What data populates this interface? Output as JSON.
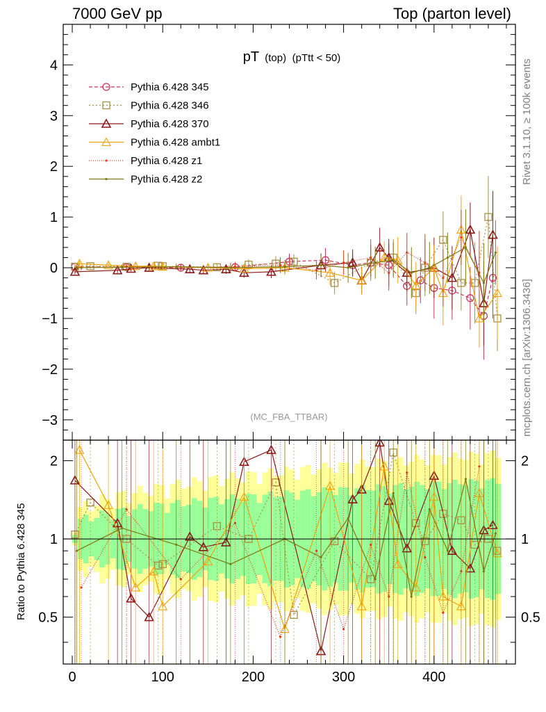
{
  "header": {
    "left": "7000 GeV pp",
    "right": "Top (parton level)"
  },
  "side_labels": {
    "rivet": "Rivet 3.1.10, ≥ 100k events",
    "mcplots": "mcplots.cern.ch [arXiv:1306.3436]"
  },
  "ratio_ylabel": "Ratio to Pythia 6.428 345",
  "chart_data": {
    "type": "line",
    "title_main": "pT",
    "title_small": "(top)",
    "title_cut": "(pTtt < 50)",
    "watermark": "(MC_FBA_TTBAR)",
    "xlim": [
      -10,
      490
    ],
    "ylim": [
      -3.4,
      4.8
    ],
    "ratio_ylim": [
      0.33,
      2.4
    ],
    "x_ticks": [
      0,
      100,
      200,
      300,
      400
    ],
    "y_ticks": [
      -3,
      -2,
      -1,
      0,
      1,
      2,
      3,
      4
    ],
    "y_tick_labels": [
      "−3",
      "−2",
      "−1",
      "0",
      "1",
      "2",
      "3",
      "4"
    ],
    "ratio_ticks": [
      0.5,
      1,
      2
    ],
    "ratio_tick_labels": [
      "0.5",
      "1",
      "2"
    ],
    "ratio_reference": 1,
    "legend_position": "top-left",
    "band_colors": [
      "#ffff99",
      "#99ff99"
    ],
    "series": [
      {
        "name": "Pythia 6.428 345",
        "color": "#c2385a",
        "dash": "5,3",
        "marker": "circle",
        "x": [
          3,
          60,
          120,
          180,
          240,
          280,
          310,
          330,
          350,
          370,
          385,
          400,
          420,
          440,
          455,
          465
        ],
        "y": [
          0.02,
          0.01,
          0.0,
          0.01,
          0.12,
          0.15,
          0.05,
          0.1,
          0.05,
          -0.36,
          -0.25,
          -0.4,
          -0.45,
          -0.6,
          -0.95,
          -0.2
        ],
        "ratio": [
          1.0,
          1.0,
          1.0,
          1.0,
          1.0,
          1.0,
          1.0,
          1.0,
          1.0,
          1.0,
          1.0,
          1.0,
          1.0,
          1.0,
          1.0,
          1.0
        ]
      },
      {
        "name": "Pythia 6.428 346",
        "color": "#a89046",
        "dash": "2,3",
        "marker": "square",
        "x": [
          3,
          20,
          60,
          95,
          100,
          160,
          195,
          225,
          245,
          290,
          330,
          355,
          380,
          390,
          410,
          430,
          445,
          460,
          470
        ],
        "y": [
          0.02,
          0.03,
          0.02,
          0.04,
          0.03,
          0.01,
          0.06,
          0.08,
          0.12,
          -0.3,
          0.1,
          0.2,
          -0.5,
          0.0,
          0.55,
          -0.3,
          -0.3,
          1.0,
          -1.0
        ],
        "ratio": [
          1.04,
          1.38,
          1.0,
          0.79,
          0.8,
          1.12,
          1.0,
          1.65,
          0.51,
          0.98,
          0.7,
          2.15,
          1.15,
          0.98,
          1.25,
          1.18,
          0.95,
          1.0,
          0.9
        ]
      },
      {
        "name": "Pythia 6.428 370",
        "color": "#8b1a1a",
        "dash": "",
        "marker": "triangle",
        "x": [
          3,
          50,
          65,
          85,
          130,
          145,
          170,
          190,
          220,
          275,
          310,
          320,
          340,
          350,
          370,
          400,
          420,
          440,
          455,
          465
        ],
        "y": [
          -0.08,
          -0.05,
          -0.02,
          0.0,
          -0.03,
          -0.05,
          -0.03,
          -0.1,
          -0.08,
          0.05,
          0.1,
          -0.25,
          0.4,
          0.2,
          -0.1,
          0.0,
          -0.2,
          0.75,
          -0.7,
          0.65
        ],
        "ratio": [
          1.68,
          1.15,
          0.59,
          0.5,
          1.02,
          0.93,
          0.97,
          1.98,
          2.2,
          0.37,
          1.42,
          1.55,
          2.35,
          1.4,
          0.92,
          1.75,
          0.9,
          0.77,
          1.08,
          1.13
        ]
      },
      {
        "name": "Pythia 6.428 ambt1",
        "color": "#f0a30a",
        "dash": "",
        "marker": "triangle-open",
        "x": [
          8,
          40,
          70,
          90,
          100,
          150,
          190,
          235,
          285,
          320,
          345,
          360,
          380,
          400,
          410,
          430,
          450,
          470
        ],
        "y": [
          0.08,
          0.05,
          0.03,
          0.03,
          0.02,
          0.0,
          -0.02,
          0.0,
          -0.1,
          -0.25,
          0.2,
          0.15,
          -0.35,
          0.0,
          -0.5,
          0.75,
          -1.0,
          -0.5
        ],
        "ratio": [
          2.2,
          1.35,
          0.65,
          0.75,
          0.55,
          0.82,
          1.45,
          0.45,
          1.6,
          0.55,
          1.9,
          0.8,
          0.65,
          1.45,
          0.6,
          0.55,
          1.5,
          0.88
        ]
      },
      {
        "name": "Pythia 6.428 z1",
        "color": "#e03c1e",
        "dash": "1,2",
        "marker": "dot",
        "x": [
          10,
          60,
          120,
          180,
          230,
          270,
          300,
          330,
          350,
          370,
          390,
          410,
          430,
          450
        ],
        "y": [
          0.0,
          0.02,
          0.01,
          0.02,
          0.05,
          -0.05,
          0.1,
          0.2,
          -0.1,
          0.3,
          0.1,
          -0.2,
          0.6,
          -0.1
        ],
        "ratio": [
          0.65,
          1.3,
          0.7,
          1.15,
          0.42,
          0.9,
          0.45,
          0.95,
          0.6,
          1.8,
          0.85,
          0.52,
          0.75,
          1.9
        ]
      },
      {
        "name": "Pythia 6.428 z2",
        "color": "#7d7a12",
        "dash": "",
        "marker": "dot",
        "x": [
          5,
          55,
          115,
          175,
          235,
          275,
          305,
          335,
          355,
          375,
          395,
          415,
          435,
          455,
          468
        ],
        "y": [
          0.0,
          0.01,
          0.02,
          0.0,
          0.02,
          0.05,
          0.0,
          0.1,
          0.15,
          -0.1,
          0.0,
          0.2,
          0.4,
          -0.3,
          0.3
        ],
        "ratio": [
          0.9,
          1.1,
          0.95,
          0.8,
          1.0,
          0.85,
          1.2,
          0.7,
          1.5,
          0.6,
          1.3,
          0.9,
          1.7,
          0.75,
          1.05
        ]
      }
    ]
  }
}
